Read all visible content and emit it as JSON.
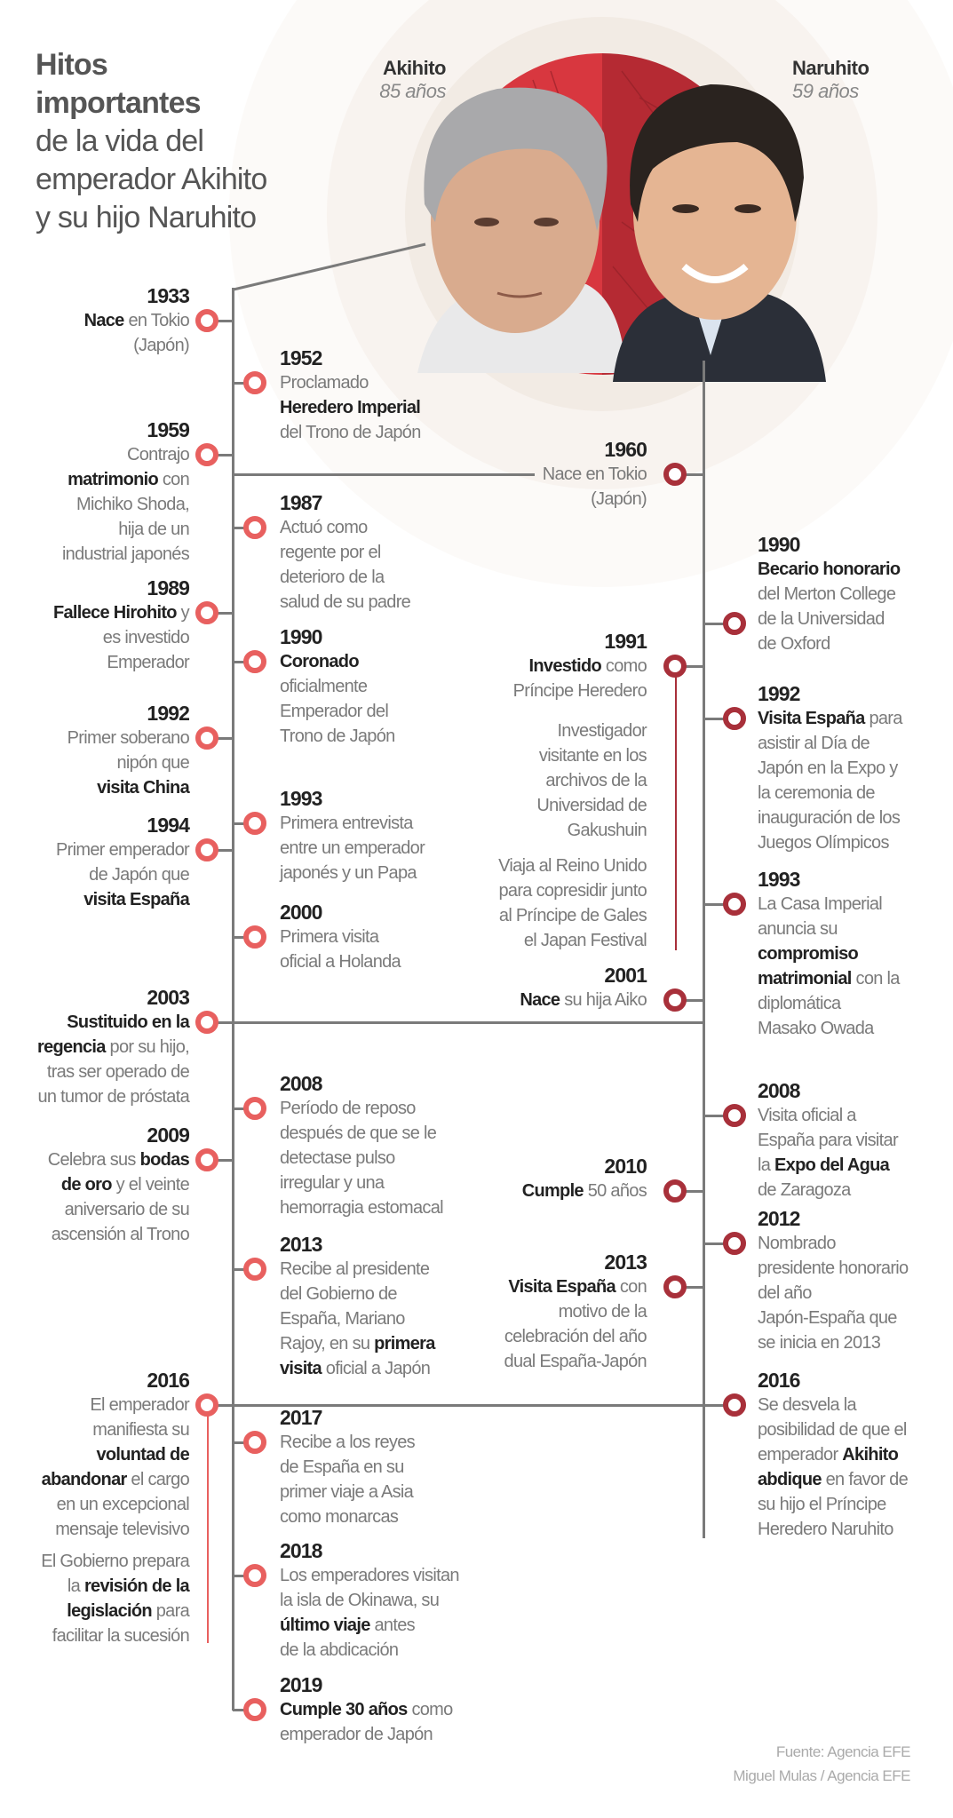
{
  "title": {
    "bold_lines": [
      "Hitos",
      "importantes"
    ],
    "lines": [
      "de la vida del",
      "emperador Akihito",
      "y su hijo Naruhito"
    ]
  },
  "people": {
    "akihito": {
      "name": "Akihito",
      "age": "85 años"
    },
    "naruhito": {
      "name": "Naruhito",
      "age": "59 años"
    }
  },
  "colors": {
    "akihito": "#e8605f",
    "naruhito": "#a8303a",
    "red_light": "#d8373f",
    "red_dark": "#b52a33"
  },
  "columns": {
    "akihito_left": [
      {
        "year": "1933",
        "lines": [
          [
            {
              "b": "Nace"
            },
            " en Tokio"
          ],
          "(Japón)"
        ]
      },
      {
        "year": "1959",
        "lines": [
          "Contrajo",
          [
            {
              "b": "matrimonio"
            },
            " con"
          ],
          "Michiko Shoda,",
          "hija de un",
          "industrial japonés"
        ]
      },
      {
        "year": "1989",
        "lines": [
          [
            {
              "b": "Fallece Hirohito"
            },
            " y"
          ],
          "es investido",
          "Emperador"
        ]
      },
      {
        "year": "1992",
        "lines": [
          "Primer soberano",
          "nipón que",
          [
            {
              "b": "visita China"
            }
          ]
        ]
      },
      {
        "year": "1994",
        "lines": [
          "Primer emperador",
          "de Japón que",
          [
            {
              "b": "visita España"
            }
          ]
        ]
      },
      {
        "year": "2003",
        "lines": [
          [
            {
              "b": "Sustituido en la"
            }
          ],
          [
            {
              "b": "regencia"
            },
            " por su hijo,"
          ],
          "tras ser operado de",
          "un tumor de próstata"
        ]
      },
      {
        "year": "2009",
        "lines": [
          [
            "Celebra sus ",
            {
              "b": "bodas"
            }
          ],
          [
            {
              "b": "de oro"
            },
            " y el veinte"
          ],
          "aniversario de su",
          "ascensión al Trono"
        ]
      },
      {
        "year": "2016",
        "lines": [
          "El emperador",
          "manifiesta su",
          [
            {
              "b": "voluntad de"
            }
          ],
          [
            {
              "b": "abandonar"
            },
            " el cargo"
          ],
          "en un excepcional",
          "mensaje televisivo"
        ],
        "note": [
          "El Gobierno prepara",
          [
            "la ",
            {
              "b": "revisión de la"
            }
          ],
          [
            {
              "b": "legislación"
            },
            " para"
          ],
          "facilitar la sucesión"
        ]
      }
    ],
    "akihito_right": [
      {
        "year": "1952",
        "lines": [
          "Proclamado",
          [
            {
              "b": "Heredero Imperial"
            }
          ],
          "del Trono de Japón"
        ]
      },
      {
        "year": "1987",
        "lines": [
          "Actuó como",
          "regente por el",
          "deterioro de la",
          "salud de su padre"
        ]
      },
      {
        "year": "1990",
        "lines": [
          [
            {
              "b": "Coronado"
            }
          ],
          "oficialmente",
          "Emperador del",
          "Trono de Japón"
        ]
      },
      {
        "year": "1993",
        "lines": [
          "Primera entrevista",
          "entre un emperador",
          "japonés y un Papa"
        ]
      },
      {
        "year": "2000",
        "lines": [
          "Primera visita",
          "oficial a Holanda"
        ]
      },
      {
        "year": "2008",
        "lines": [
          "Período de reposo",
          "después de que se le",
          "detectase pulso",
          "irregular y una",
          "hemorragia estomacal"
        ]
      },
      {
        "year": "2013",
        "lines": [
          "Recibe al presidente",
          "del Gobierno de",
          "España, Mariano",
          [
            "Rajoy, en su ",
            {
              "b": "primera"
            }
          ],
          [
            {
              "b": "visita"
            },
            " oficial a Japón"
          ]
        ]
      },
      {
        "year": "2017",
        "lines": [
          "Recibe a los reyes",
          "de España en su",
          "primer viaje a Asia",
          "como monarcas"
        ]
      },
      {
        "year": "2018",
        "lines": [
          "Los emperadores visitan",
          "la isla de Okinawa, su",
          [
            {
              "b": "último viaje"
            },
            " antes"
          ],
          "de la abdicación"
        ]
      },
      {
        "year": "2019",
        "lines": [
          [
            {
              "b": "Cumple 30 años"
            },
            " como"
          ],
          "emperador de Japón"
        ]
      }
    ],
    "naruhito_left": [
      {
        "year": "1960",
        "lines": [
          "Nace en Tokio",
          "(Japón)"
        ]
      },
      {
        "year": "1991",
        "lines": [
          [
            {
              "b": "Investido"
            },
            " como"
          ],
          "Príncipe Heredero"
        ],
        "notes": [
          [
            "Investigador",
            "visitante en los",
            "archivos de la",
            "Universidad de",
            "Gakushuin"
          ],
          [
            "Viaja al Reino Unido",
            "para copresidir junto",
            "al Príncipe de Gales",
            "el Japan Festival"
          ]
        ]
      },
      {
        "year": "2001",
        "lines": [
          [
            {
              "b": "Nace"
            },
            " su hija Aiko"
          ]
        ]
      },
      {
        "year": "2010",
        "lines": [
          [
            {
              "b": "Cumple"
            },
            " 50 años"
          ]
        ]
      },
      {
        "year": "2013",
        "lines": [
          [
            {
              "b": "Visita España"
            },
            " con"
          ],
          "motivo de la",
          "celebración del año",
          "dual España-Japón"
        ]
      }
    ],
    "naruhito_right": [
      {
        "year": "1990",
        "lines": [
          [
            {
              "b": "Becario honorario"
            }
          ],
          "del Merton College",
          "de la Universidad",
          "de Oxford"
        ]
      },
      {
        "year": "1992",
        "lines": [
          [
            {
              "b": "Visita España"
            },
            " para"
          ],
          "asistir al Día de",
          "Japón en la Expo y",
          "la ceremonia de",
          "inauguración de los",
          "Juegos Olímpicos"
        ]
      },
      {
        "year": "1993",
        "lines": [
          "La Casa Imperial",
          "anuncia su",
          [
            {
              "b": "compromiso"
            }
          ],
          [
            {
              "b": "matrimonial"
            },
            " con la"
          ],
          "diplomática",
          "Masako Owada"
        ]
      },
      {
        "year": "2008",
        "lines": [
          "Visita oficial a",
          "España para visitar",
          [
            "la ",
            {
              "b": "Expo del Agua"
            }
          ],
          "de Zaragoza"
        ]
      },
      {
        "year": "2012",
        "lines": [
          "Nombrado",
          "presidente honorario",
          "del año",
          "Japón-España que",
          "se inicia en 2013"
        ]
      },
      {
        "year": "2016",
        "lines": [
          "Se desvela la",
          "posibilidad de que el",
          [
            "emperador ",
            {
              "b": "Akihito"
            }
          ],
          [
            {
              "b": "abdique"
            },
            " en favor de"
          ],
          "su hijo el Príncipe",
          "Heredero Naruhito"
        ]
      }
    ]
  },
  "footer": {
    "source": "Fuente: Agencia EFE",
    "credit": "Miguel Mulas / Agencia EFE"
  }
}
